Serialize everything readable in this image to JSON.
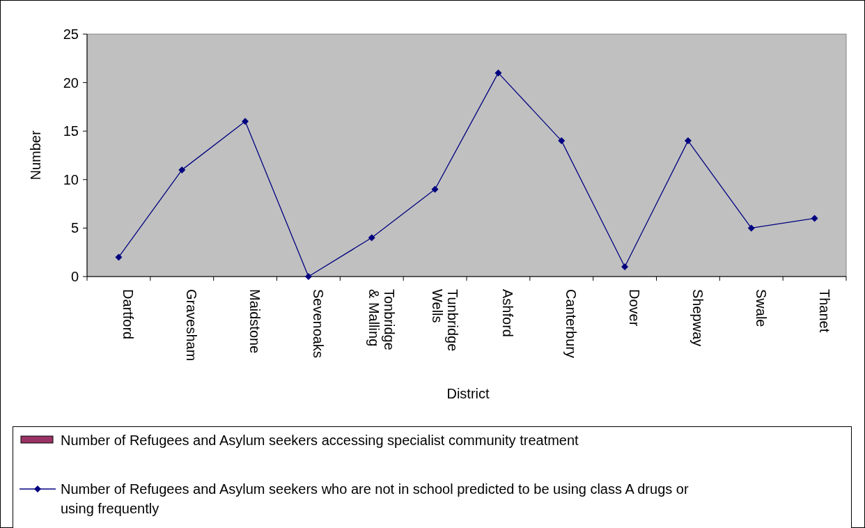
{
  "chart_data": {
    "type": "line",
    "xlabel": "District",
    "ylabel": "Number",
    "categories": [
      "Dartford",
      "Gravesham",
      "Maidstone",
      "Sevenoaks",
      "Tonbridge & Malling",
      "Tunbridge Wells",
      "Ashford",
      "Canterbury",
      "Dover",
      "Shepway",
      "Swale",
      "Thanet"
    ],
    "series": [
      {
        "name": "Number of Refugees and Asylum seekers accessing specialist community treatment",
        "type": "bar",
        "color": "#993366",
        "values": [
          null,
          null,
          null,
          null,
          null,
          null,
          null,
          null,
          null,
          null,
          null,
          null
        ]
      },
      {
        "name": "Number of Refugees and Asylum seekers who are not in school predicted to be using class A drugs or using frequently",
        "color": "#000080",
        "marker": "diamond",
        "values": [
          2,
          11,
          16,
          0,
          4,
          9,
          21,
          14,
          1,
          14,
          5,
          6
        ]
      }
    ],
    "ylim": [
      0,
      25
    ],
    "yticks": [
      0,
      5,
      10,
      15,
      20,
      25
    ],
    "grid": false,
    "legend": "bottom"
  }
}
